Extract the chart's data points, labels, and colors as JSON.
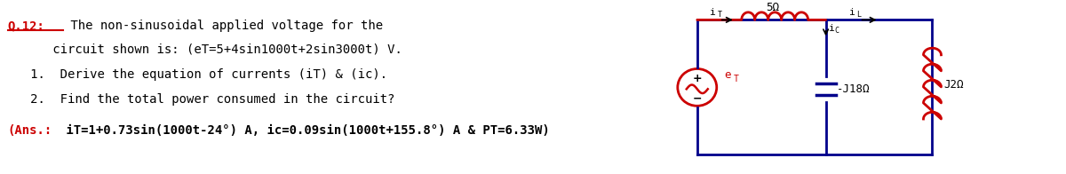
{
  "bg_color": "#ffffff",
  "text_color": "#000000",
  "circuit_color": "#00008B",
  "red_color": "#CC0000",
  "question_label": "Q.12:",
  "line1": " The non-sinusoidal applied voltage for the",
  "line2": "      circuit shown is: (eT=5+4sin1000t+2sin3000t) V.",
  "line3": "   1.  Derive the equation of currents (iT) & (ic).",
  "line4": "   2.  Find the total power consumed in the circuit?",
  "ans_prefix": "(Ans.:",
  "ans_rest": " iT=1+0.73sin(1000t-24°) A, ic=0.09sin(1000t+155.8°) A & PT=6.33W)",
  "figsize": [
    12.0,
    1.96
  ],
  "dpi": 100
}
